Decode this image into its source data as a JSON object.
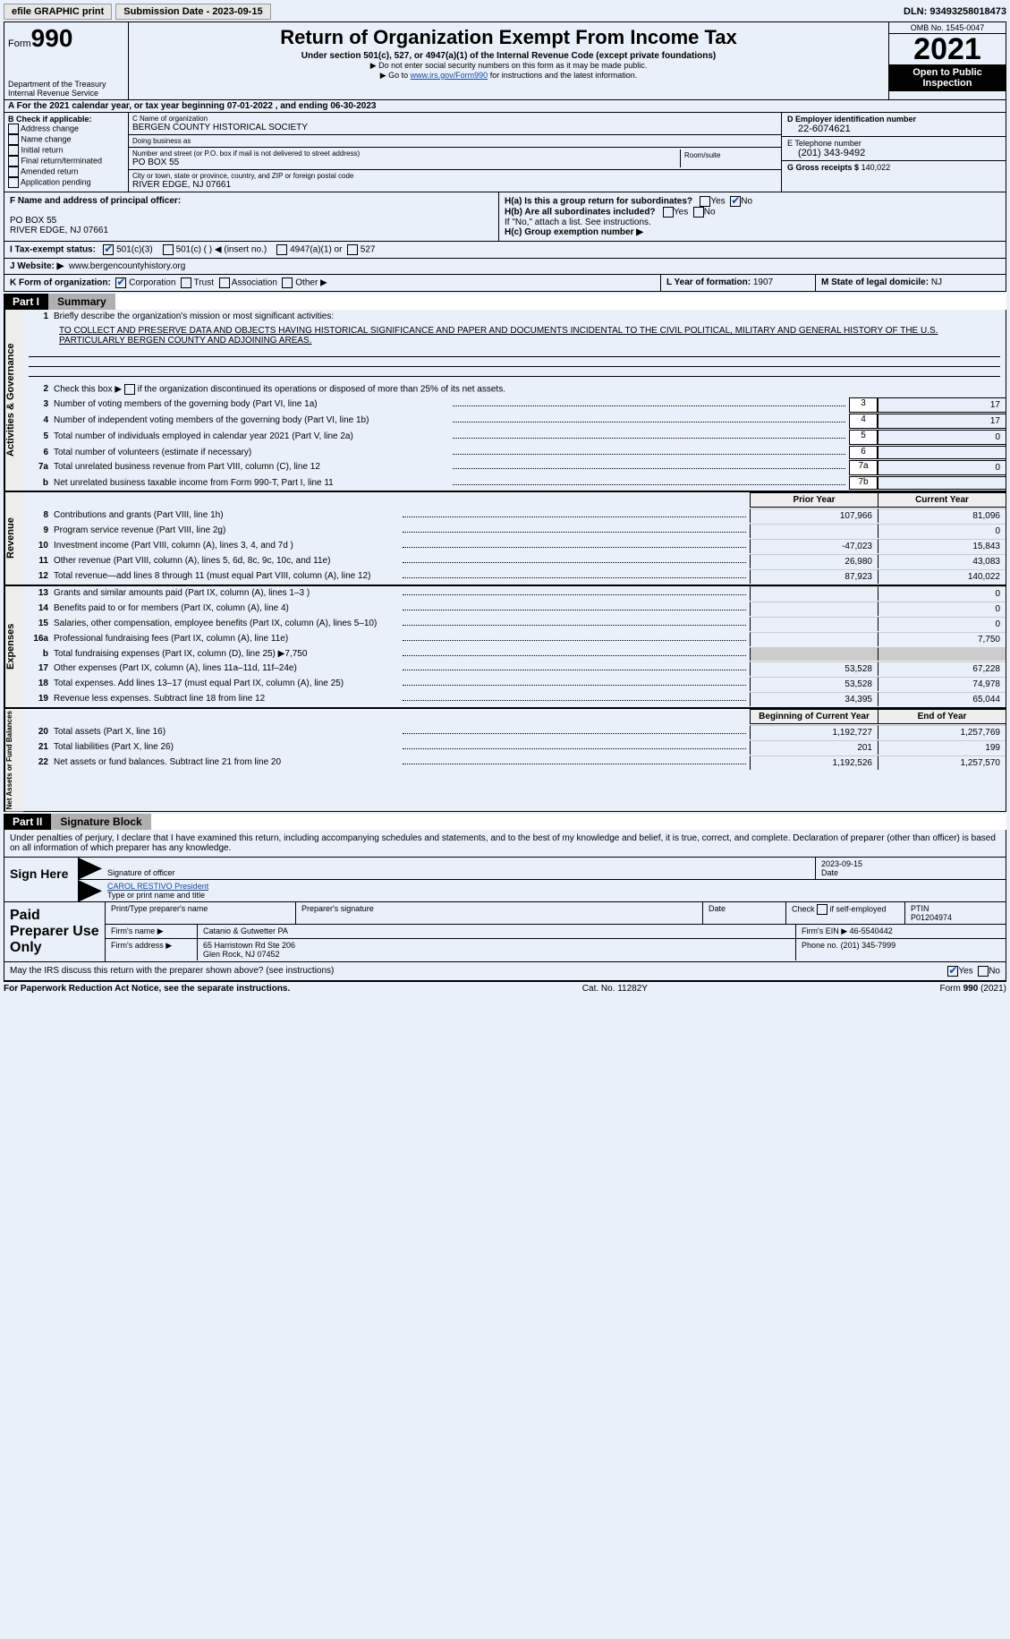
{
  "top": {
    "efile": "efile GRAPHIC print",
    "submission": "Submission Date - 2023-09-15",
    "dln": "DLN: 93493258018473"
  },
  "header": {
    "form_prefix": "Form",
    "form_num": "990",
    "dept": "Department of the Treasury",
    "irs": "Internal Revenue Service",
    "title": "Return of Organization Exempt From Income Tax",
    "sub1": "Under section 501(c), 527, or 4947(a)(1) of the Internal Revenue Code (except private foundations)",
    "sub2a": "▶ Do not enter social security numbers on this form as it may be made public.",
    "sub2b_pre": "▶ Go to ",
    "sub2b_link": "www.irs.gov/Form990",
    "sub2b_post": " for instructions and the latest information.",
    "omb": "OMB No. 1545-0047",
    "year": "2021",
    "inspect": "Open to Public Inspection"
  },
  "rowA": "A  For the 2021 calendar year, or tax year beginning 07-01-2022    , and ending 06-30-2023",
  "boxB": {
    "label": "B Check if applicable:",
    "opts": [
      "Address change",
      "Name change",
      "Initial return",
      "Final return/terminated",
      "Amended return",
      "Application pending"
    ]
  },
  "boxC": {
    "name_lbl": "C Name of organization",
    "name": "BERGEN COUNTY HISTORICAL SOCIETY",
    "dba_lbl": "Doing business as",
    "dba": "",
    "street_lbl": "Number and street (or P.O. box if mail is not delivered to street address)",
    "room_lbl": "Room/suite",
    "street": "PO BOX 55",
    "city_lbl": "City or town, state or province, country, and ZIP or foreign postal code",
    "city": "RIVER EDGE, NJ  07661"
  },
  "boxD": {
    "lbl": "D Employer identification number",
    "val": "22-6074621"
  },
  "boxE": {
    "lbl": "E Telephone number",
    "val": "(201) 343-9492"
  },
  "boxG": {
    "lbl": "G Gross receipts $",
    "val": "140,022"
  },
  "boxF": {
    "lbl": "F  Name and address of principal officer:",
    "l1": "PO BOX 55",
    "l2": "RIVER EDGE, NJ  07661"
  },
  "boxH": {
    "a": "H(a)  Is this a group return for subordinates?",
    "b": "H(b)  Are all subordinates included?",
    "b2": "If \"No,\" attach a list. See instructions.",
    "c": "H(c)  Group exemption number ▶",
    "yes": "Yes",
    "no": "No"
  },
  "rowI": {
    "lbl": "I   Tax-exempt status:",
    "o1": "501(c)(3)",
    "o2": "501(c) (  ) ◀ (insert no.)",
    "o3": "4947(a)(1) or",
    "o4": "527"
  },
  "rowJ": {
    "lbl": "J   Website: ▶",
    "val": "www.bergencountyhistory.org"
  },
  "rowK": {
    "lbl": "K Form of organization:",
    "o1": "Corporation",
    "o2": "Trust",
    "o3": "Association",
    "o4": "Other ▶"
  },
  "rowL": {
    "lbl": "L Year of formation:",
    "val": "1907"
  },
  "rowM": {
    "lbl": "M State of legal domicile:",
    "val": "NJ"
  },
  "part1": {
    "num": "Part I",
    "title": "Summary"
  },
  "summary": {
    "side1": "Activities & Governance",
    "q1": "Briefly describe the organization's mission or most significant activities:",
    "mission": "TO COLLECT AND PRESERVE DATA AND OBJECTS HAVING HISTORICAL SIGNIFICANCE AND PAPER AND DOCUMENTS INCIDENTAL TO THE CIVIL POLITICAL, MILITARY AND GENERAL HISTORY OF THE U.S. PARTICULARLY BERGEN COUNTY AND ADJOINING AREAS.",
    "q2": "Check this box ▶       if the organization discontinued its operations or disposed of more than 25% of its net assets.",
    "lines": [
      {
        "n": "3",
        "d": "Number of voting members of the governing body (Part VI, line 1a)",
        "b": "3",
        "v": "17"
      },
      {
        "n": "4",
        "d": "Number of independent voting members of the governing body (Part VI, line 1b)",
        "b": "4",
        "v": "17"
      },
      {
        "n": "5",
        "d": "Total number of individuals employed in calendar year 2021 (Part V, line 2a)",
        "b": "5",
        "v": "0"
      },
      {
        "n": "6",
        "d": "Total number of volunteers (estimate if necessary)",
        "b": "6",
        "v": ""
      },
      {
        "n": "7a",
        "d": "Total unrelated business revenue from Part VIII, column (C), line 12",
        "b": "7a",
        "v": "0"
      },
      {
        "n": "b",
        "d": "Net unrelated business taxable income from Form 990-T, Part I, line 11",
        "b": "7b",
        "v": ""
      }
    ],
    "side2": "Revenue",
    "colhdr1": "Prior Year",
    "colhdr2": "Current Year",
    "rev": [
      {
        "n": "8",
        "d": "Contributions and grants (Part VIII, line 1h)",
        "p": "107,966",
        "c": "81,096"
      },
      {
        "n": "9",
        "d": "Program service revenue (Part VIII, line 2g)",
        "p": "",
        "c": "0"
      },
      {
        "n": "10",
        "d": "Investment income (Part VIII, column (A), lines 3, 4, and 7d )",
        "p": "-47,023",
        "c": "15,843"
      },
      {
        "n": "11",
        "d": "Other revenue (Part VIII, column (A), lines 5, 6d, 8c, 9c, 10c, and 11e)",
        "p": "26,980",
        "c": "43,083"
      },
      {
        "n": "12",
        "d": "Total revenue—add lines 8 through 11 (must equal Part VIII, column (A), line 12)",
        "p": "87,923",
        "c": "140,022"
      }
    ],
    "side3": "Expenses",
    "exp": [
      {
        "n": "13",
        "d": "Grants and similar amounts paid (Part IX, column (A), lines 1–3 )",
        "p": "",
        "c": "0"
      },
      {
        "n": "14",
        "d": "Benefits paid to or for members (Part IX, column (A), line 4)",
        "p": "",
        "c": "0"
      },
      {
        "n": "15",
        "d": "Salaries, other compensation, employee benefits (Part IX, column (A), lines 5–10)",
        "p": "",
        "c": "0"
      },
      {
        "n": "16a",
        "d": "Professional fundraising fees (Part IX, column (A), line 11e)",
        "p": "",
        "c": "7,750"
      },
      {
        "n": "b",
        "d": "Total fundraising expenses (Part IX, column (D), line 25) ▶7,750",
        "p": "shade",
        "c": "shade"
      },
      {
        "n": "17",
        "d": "Other expenses (Part IX, column (A), lines 11a–11d, 11f–24e)",
        "p": "53,528",
        "c": "67,228"
      },
      {
        "n": "18",
        "d": "Total expenses. Add lines 13–17 (must equal Part IX, column (A), line 25)",
        "p": "53,528",
        "c": "74,978"
      },
      {
        "n": "19",
        "d": "Revenue less expenses. Subtract line 18 from line 12",
        "p": "34,395",
        "c": "65,044"
      }
    ],
    "side4": "Net Assets or Fund Balances",
    "colhdr3": "Beginning of Current Year",
    "colhdr4": "End of Year",
    "net": [
      {
        "n": "20",
        "d": "Total assets (Part X, line 16)",
        "p": "1,192,727",
        "c": "1,257,769"
      },
      {
        "n": "21",
        "d": "Total liabilities (Part X, line 26)",
        "p": "201",
        "c": "199"
      },
      {
        "n": "22",
        "d": "Net assets or fund balances. Subtract line 21 from line 20",
        "p": "1,192,526",
        "c": "1,257,570"
      }
    ]
  },
  "part2": {
    "num": "Part II",
    "title": "Signature Block"
  },
  "sig": {
    "decl": "Under penalties of perjury, I declare that I have examined this return, including accompanying schedules and statements, and to the best of my knowledge and belief, it is true, correct, and complete. Declaration of preparer (other than officer) is based on all information of which preparer has any knowledge.",
    "sign_here": "Sign Here",
    "sig_officer": "Signature of officer",
    "date": "Date",
    "date_val": "2023-09-15",
    "name_title": "CAROL RESTIVO  President",
    "name_lbl": "Type or print name and title",
    "paid": "Paid Preparer Use Only",
    "p_name_lbl": "Print/Type preparer's name",
    "p_sig_lbl": "Preparer's signature",
    "p_date_lbl": "Date",
    "p_check": "Check         if self-employed",
    "ptin_lbl": "PTIN",
    "ptin": "P01204974",
    "firm_name_lbl": "Firm's name    ▶",
    "firm_name": "Catanio & Gutwetter PA",
    "firm_ein_lbl": "Firm's EIN ▶",
    "firm_ein": "46-5540442",
    "firm_addr_lbl": "Firm's address ▶",
    "firm_addr1": "65 Harristown Rd Ste 206",
    "firm_addr2": "Glen Rock, NJ  07452",
    "phone_lbl": "Phone no.",
    "phone": "(201) 345-7999",
    "discuss": "May the IRS discuss this return with the preparer shown above? (see instructions)",
    "yes": "Yes",
    "no": "No"
  },
  "footer": {
    "l": "For Paperwork Reduction Act Notice, see the separate instructions.",
    "m": "Cat. No. 11282Y",
    "r": "Form 990 (2021)"
  }
}
